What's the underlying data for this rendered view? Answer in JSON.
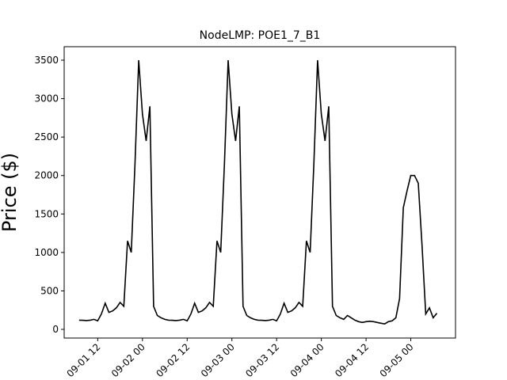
{
  "chart_data": {
    "type": "line",
    "title": "NodeLMP: POE1_7_B1",
    "y_label": "Price ($)",
    "x": [
      "09-01 07",
      "09-01 08",
      "09-01 09",
      "09-01 10",
      "09-01 11",
      "09-01 12",
      "09-01 13",
      "09-01 14",
      "09-01 15",
      "09-01 16",
      "09-01 17",
      "09-01 18",
      "09-01 19",
      "09-01 20",
      "09-01 21",
      "09-01 22",
      "09-01 23",
      "09-02 00",
      "09-02 01",
      "09-02 02",
      "09-02 03",
      "09-02 04",
      "09-02 05",
      "09-02 06",
      "09-02 07",
      "09-02 08",
      "09-02 09",
      "09-02 10",
      "09-02 11",
      "09-02 12",
      "09-02 13",
      "09-02 14",
      "09-02 15",
      "09-02 16",
      "09-02 17",
      "09-02 18",
      "09-02 19",
      "09-02 20",
      "09-02 21",
      "09-02 22",
      "09-02 23",
      "09-03 00",
      "09-03 01",
      "09-03 02",
      "09-03 03",
      "09-03 04",
      "09-03 05",
      "09-03 06",
      "09-03 07",
      "09-03 08",
      "09-03 09",
      "09-03 10",
      "09-03 11",
      "09-03 12",
      "09-03 13",
      "09-03 14",
      "09-03 15",
      "09-03 16",
      "09-03 17",
      "09-03 18",
      "09-03 19",
      "09-03 20",
      "09-03 21",
      "09-03 22",
      "09-03 23",
      "09-04 00",
      "09-04 01",
      "09-04 02",
      "09-04 03",
      "09-04 04",
      "09-04 05",
      "09-04 06",
      "09-04 07",
      "09-04 08",
      "09-04 09",
      "09-04 10",
      "09-04 11",
      "09-04 12",
      "09-04 13",
      "09-04 14",
      "09-04 15",
      "09-04 16",
      "09-04 17",
      "09-04 18",
      "09-04 19",
      "09-04 20",
      "09-04 21",
      "09-04 22",
      "09-04 23",
      "09-05 00",
      "09-05 01",
      "09-05 02",
      "09-05 03",
      "09-05 04",
      "09-05 05",
      "09-05 06",
      "09-05 07"
    ],
    "series": [
      {
        "color": "#000000",
        "values": [
          120,
          118,
          115,
          120,
          130,
          110,
          200,
          340,
          220,
          240,
          280,
          350,
          300,
          1150,
          1000,
          2150,
          3500,
          2800,
          2450,
          2900,
          300,
          180,
          150,
          130,
          120,
          118,
          115,
          120,
          130,
          110,
          200,
          340,
          220,
          240,
          280,
          350,
          300,
          1150,
          1000,
          2150,
          3500,
          2800,
          2450,
          2900,
          300,
          180,
          150,
          130,
          120,
          118,
          115,
          120,
          130,
          110,
          200,
          340,
          220,
          240,
          280,
          350,
          300,
          1150,
          1000,
          2150,
          3500,
          2800,
          2450,
          2900,
          300,
          180,
          150,
          130,
          180,
          150,
          120,
          100,
          90,
          100,
          105,
          100,
          90,
          80,
          70,
          100,
          110,
          150,
          400,
          1580,
          1800,
          2000,
          2000,
          1900,
          1100,
          200,
          280,
          150,
          210
        ]
      }
    ],
    "xlim": [
      "09-01 03",
      "09-05 12"
    ],
    "xticks": [
      "09-01 12",
      "09-02 00",
      "09-02 12",
      "09-03 00",
      "09-03 12",
      "09-04 00",
      "09-04 12",
      "09-05 00"
    ],
    "ylim": [
      -113,
      3675
    ],
    "yticks": [
      0,
      500,
      1000,
      1500,
      2000,
      2500,
      3000,
      3500
    ]
  }
}
